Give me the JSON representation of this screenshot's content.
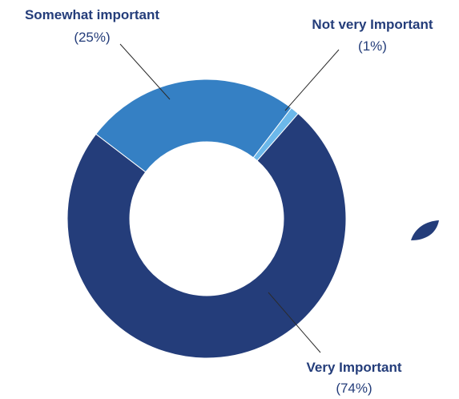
{
  "chart_data": {
    "type": "pie",
    "subtype": "donut",
    "slices": [
      {
        "label": "Very Important",
        "value_label": "(74%)",
        "value": 74,
        "color": "#243d7a"
      },
      {
        "label": "Somewhat important",
        "value_label": "(25%)",
        "value": 25,
        "color": "#3580c4"
      },
      {
        "label": "Not very Important",
        "value_label": "(1%)",
        "value": 1,
        "color": "#6cb8ea"
      }
    ],
    "legend": "none",
    "decoration_color": "#243d7a"
  }
}
